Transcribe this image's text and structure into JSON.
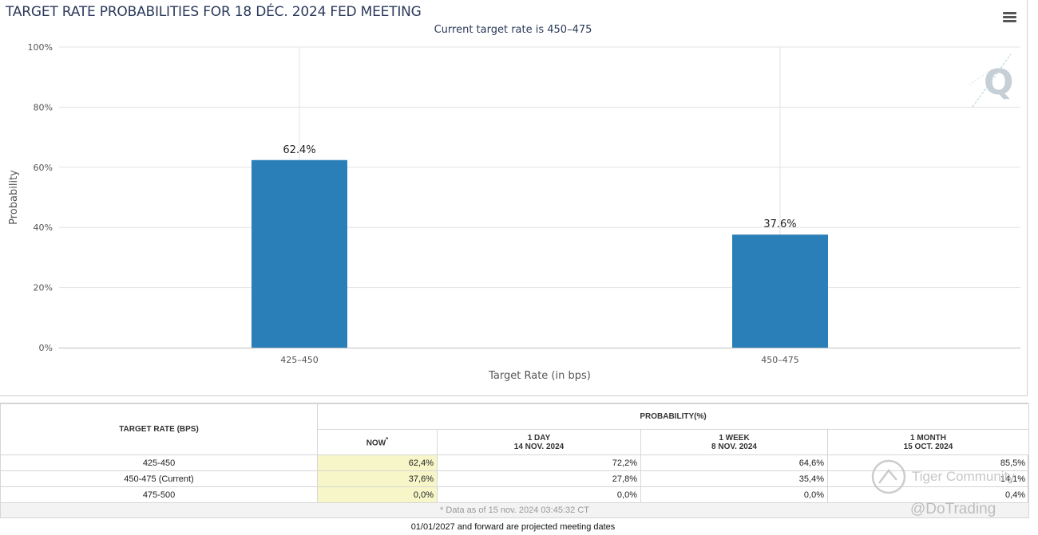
{
  "chart_data": {
    "type": "bar",
    "title": "TARGET RATE PROBABILITIES FOR 18 DÉC. 2024 FED MEETING",
    "subtitle": "Current target rate is 450–475",
    "categories": [
      "425–450",
      "450–475"
    ],
    "values": [
      62.4,
      37.6
    ],
    "data_labels": [
      "62.4%",
      "37.6%"
    ],
    "xlabel": "Target Rate (in bps)",
    "ylabel": "Probability",
    "ylim": [
      0,
      100
    ],
    "y_ticks": [
      0,
      20,
      40,
      60,
      80,
      100
    ],
    "y_tick_labels": [
      "0%",
      "20%",
      "40%",
      "60%",
      "80%",
      "100%"
    ],
    "grid": true,
    "bar_color": "#2a7fb8",
    "legend": "none"
  },
  "logo": {
    "letter": "Q"
  },
  "table": {
    "target_rate_header": "TARGET RATE (BPS)",
    "probability_header": "PROBABILITY(%)",
    "columns": [
      {
        "label": "NOW",
        "marker": "*",
        "sub": ""
      },
      {
        "label": "1 DAY",
        "sub": "14 NOV. 2024"
      },
      {
        "label": "1 WEEK",
        "sub": "8 NOV. 2024"
      },
      {
        "label": "1 MONTH",
        "sub": "15 OCT. 2024"
      }
    ],
    "rows": [
      {
        "rate": "425-450",
        "values": [
          "62,4%",
          "72,2%",
          "64,6%",
          "85,5%"
        ]
      },
      {
        "rate": "450-475 (Current)",
        "values": [
          "37,6%",
          "27,8%",
          "35,4%",
          "14,1%"
        ]
      },
      {
        "rate": "475-500",
        "values": [
          "0,0%",
          "0,0%",
          "0,0%",
          "0,4%"
        ]
      }
    ],
    "footnote": "* Data as of 15 nov. 2024 03:45:32 CT"
  },
  "projected_note": "01/01/2027 and forward are projected meeting dates",
  "watermark": {
    "community": "Tiger Community",
    "handle": "@DoTrading"
  }
}
